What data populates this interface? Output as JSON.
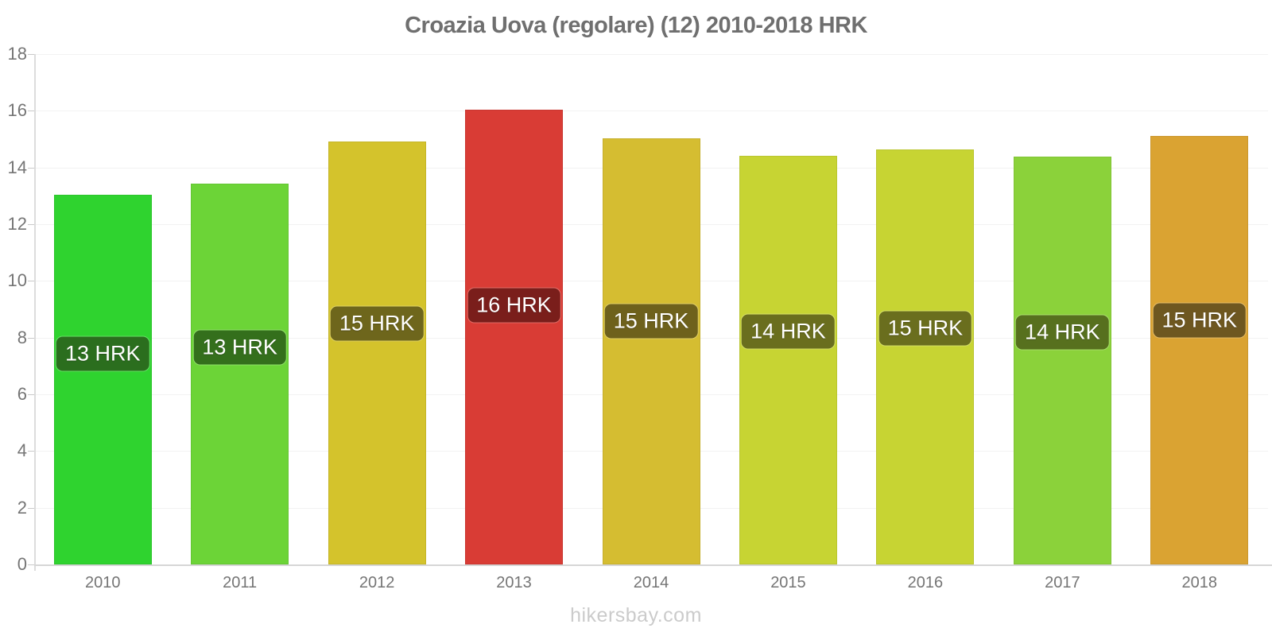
{
  "chart_data": {
    "type": "bar",
    "title": "Croazia Uova (regolare) (12) 2010-2018 HRK",
    "watermark": "hikersbay.com",
    "categories": [
      "2010",
      "2011",
      "2012",
      "2013",
      "2014",
      "2015",
      "2016",
      "2017",
      "2018"
    ],
    "values": [
      13.05,
      13.43,
      14.92,
      16.05,
      15.03,
      14.42,
      14.63,
      14.38,
      15.12
    ],
    "bar_labels": [
      "13 HRK",
      "13 HRK",
      "15 HRK",
      "16 HRK",
      "15 HRK",
      "14 HRK",
      "15 HRK",
      "14 HRK",
      "15 HRK"
    ],
    "bar_colors": [
      "#2FD32F",
      "#6CD437",
      "#D4C32C",
      "#D93C35",
      "#D5BD31",
      "#C7D433",
      "#C7D433",
      "#8BD23A",
      "#DAA332"
    ],
    "badge_colors": [
      "#2B6E1E",
      "#346F1C",
      "#6E661C",
      "#7A1E1B",
      "#6E611C",
      "#6A6E1E",
      "#6A6E1E",
      "#57701E",
      "#6E5720"
    ],
    "unit": "HRK",
    "xlabel": "",
    "ylabel": "",
    "ylim": [
      0,
      18
    ],
    "yticks": [
      0,
      2,
      4,
      6,
      8,
      10,
      12,
      14,
      16,
      18
    ],
    "grid": "horizontal-faint",
    "legend": "none"
  },
  "colors": {
    "background": "#FFFFFF",
    "title": "#6F6F6F",
    "axis_label": "#757575",
    "gridline": "#F2F2F2",
    "baseline": "#D6D6D6",
    "axis_line": "#DCDCDC",
    "badge_text": "#FFFFFF",
    "watermark": "#CBCBCB"
  }
}
